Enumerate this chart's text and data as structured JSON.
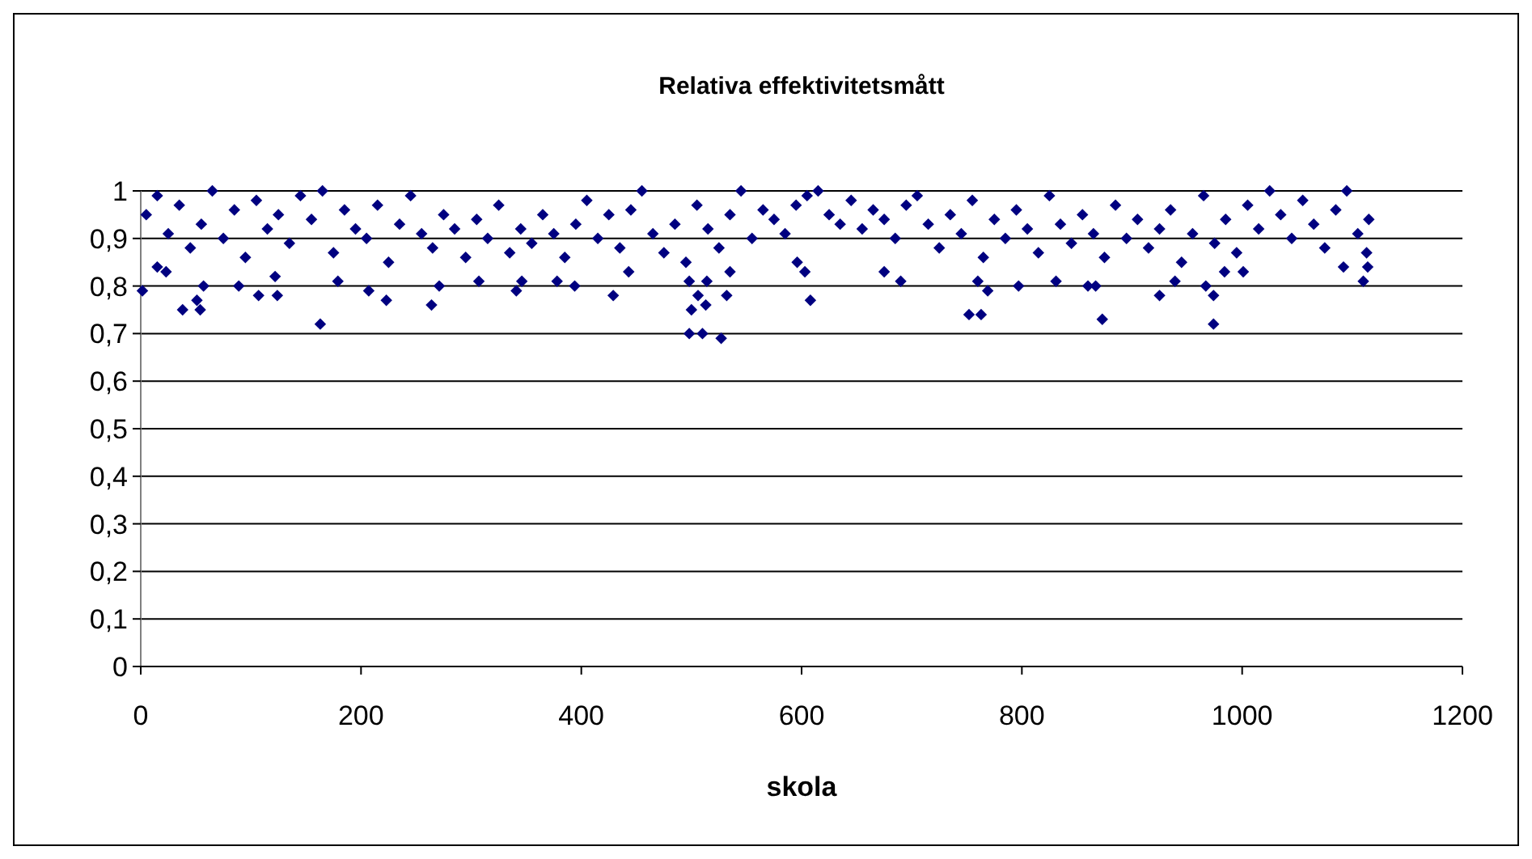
{
  "chart_data": {
    "type": "scatter",
    "title": "Relativa effektivitetsmått",
    "xlabel": "skola",
    "xlim": [
      0,
      1200
    ],
    "xticks": [
      0,
      200,
      400,
      600,
      800,
      1000,
      1200
    ],
    "ylim": [
      0,
      1
    ],
    "yticks": [
      0,
      {
        "value": 0.1,
        "label": "0,1"
      },
      {
        "value": 0.2,
        "label": "0,2"
      },
      {
        "value": 0.3,
        "label": "0,3"
      },
      {
        "value": 0.4,
        "label": "0,4"
      },
      {
        "value": 0.5,
        "label": "0,5"
      },
      {
        "value": 0.6,
        "label": "0,6"
      },
      {
        "value": 0.7,
        "label": "0,7"
      },
      {
        "value": 0.8,
        "label": "0,8"
      },
      {
        "value": 0.9,
        "label": "0,9"
      },
      1
    ],
    "grid": "y",
    "marker": "diamond",
    "series": [
      {
        "color": "#000080",
        "x": [
          5,
          15,
          25,
          35,
          45,
          55,
          65,
          75,
          85,
          95,
          105,
          115,
          125,
          135,
          145,
          155,
          165,
          175,
          185,
          195,
          205,
          215,
          225,
          235,
          245,
          255,
          265,
          275,
          285,
          295,
          305,
          315,
          325,
          335,
          345,
          355,
          365,
          375,
          385,
          395,
          405,
          415,
          425,
          435,
          445,
          455,
          465,
          475,
          485,
          495,
          505,
          515,
          525,
          535,
          545,
          555,
          565,
          575,
          585,
          595,
          605,
          615,
          625,
          635,
          645,
          655,
          665,
          675,
          685,
          695,
          705,
          715,
          725,
          735,
          745,
          755,
          765,
          775,
          785,
          795,
          805,
          815,
          825,
          835,
          845,
          855,
          865,
          875,
          885,
          895,
          905,
          915,
          925,
          935,
          945,
          955,
          965,
          975,
          985,
          995,
          1005,
          1015,
          1025,
          1035,
          1045,
          1055,
          1065,
          1075,
          1085,
          1095,
          1105,
          1115,
          1.5,
          15,
          23,
          38,
          51,
          54,
          57,
          89,
          107,
          124,
          122,
          163,
          179,
          207,
          223,
          264,
          271,
          307,
          341,
          346,
          378,
          394,
          429,
          443,
          498,
          500,
          498,
          510,
          527,
          506,
          513,
          532,
          535,
          514,
          608,
          603,
          596,
          675,
          690,
          752,
          763,
          760,
          769,
          797,
          831,
          860,
          867,
          873,
          925,
          939,
          967,
          974,
          974,
          984,
          1001,
          1110,
          1114,
          1092,
          1113
        ],
        "values": [
          0.95,
          0.99,
          0.91,
          0.97,
          0.88,
          0.93,
          1,
          0.9,
          0.96,
          0.86,
          0.98,
          0.92,
          0.95,
          0.89,
          0.99,
          0.94,
          1,
          0.87,
          0.96,
          0.92,
          0.9,
          0.97,
          0.85,
          0.93,
          0.99,
          0.91,
          0.88,
          0.95,
          0.92,
          0.86,
          0.94,
          0.9,
          0.97,
          0.87,
          0.92,
          0.89,
          0.95,
          0.91,
          0.86,
          0.93,
          0.98,
          0.9,
          0.95,
          0.88,
          0.96,
          1,
          0.91,
          0.87,
          0.93,
          0.85,
          0.97,
          0.92,
          0.88,
          0.95,
          1,
          0.9,
          0.96,
          0.94,
          0.91,
          0.97,
          0.99,
          1,
          0.95,
          0.93,
          0.98,
          0.92,
          0.96,
          0.94,
          0.9,
          0.97,
          0.99,
          0.93,
          0.88,
          0.95,
          0.91,
          0.98,
          0.86,
          0.94,
          0.9,
          0.96,
          0.92,
          0.87,
          0.99,
          0.93,
          0.89,
          0.95,
          0.91,
          0.86,
          0.97,
          0.9,
          0.94,
          0.88,
          0.92,
          0.96,
          0.85,
          0.91,
          0.99,
          0.89,
          0.94,
          0.87,
          0.97,
          0.92,
          1,
          0.95,
          0.9,
          0.98,
          0.93,
          0.88,
          0.96,
          1,
          0.91,
          0.94,
          0.79,
          0.84,
          0.83,
          0.75,
          0.77,
          0.75,
          0.8,
          0.8,
          0.78,
          0.78,
          0.82,
          0.72,
          0.81,
          0.79,
          0.77,
          0.76,
          0.8,
          0.81,
          0.79,
          0.81,
          0.81,
          0.8,
          0.78,
          0.83,
          0.81,
          0.75,
          0.7,
          0.7,
          0.69,
          0.78,
          0.76,
          0.78,
          0.83,
          0.81,
          0.77,
          0.83,
          0.85,
          0.83,
          0.81,
          0.74,
          0.74,
          0.81,
          0.79,
          0.8,
          0.81,
          0.8,
          0.8,
          0.73,
          0.78,
          0.81,
          0.8,
          0.78,
          0.72,
          0.83,
          0.83,
          0.81,
          0.84,
          0.84,
          0.87
        ]
      }
    ]
  }
}
